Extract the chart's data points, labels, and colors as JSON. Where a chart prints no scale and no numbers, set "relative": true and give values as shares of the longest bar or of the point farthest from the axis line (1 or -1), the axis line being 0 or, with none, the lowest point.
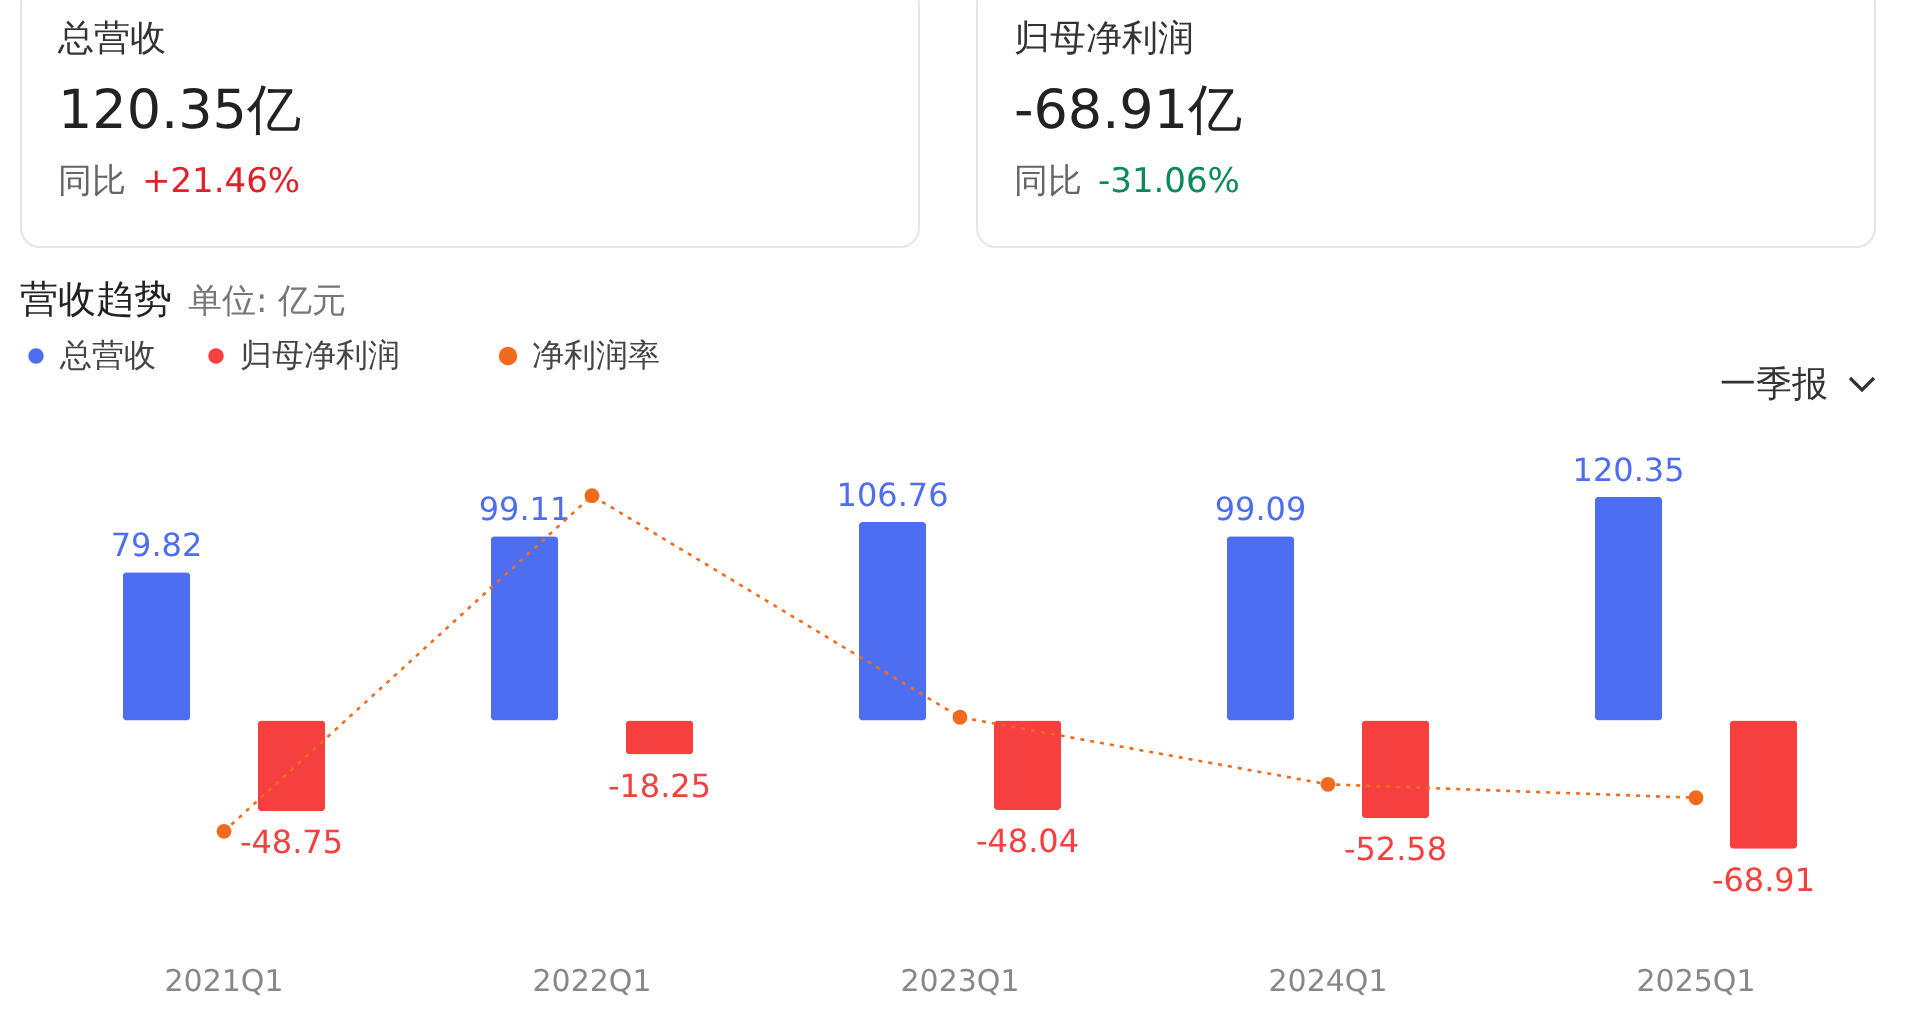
{
  "chart_data": [
    {
      "type": "other",
      "title": "总营收",
      "annotations": [
        "120.35亿",
        "同比",
        "+21.46%"
      ]
    },
    {
      "type": "other",
      "title": "归母净利润",
      "annotations": [
        "-68.91亿",
        "同比",
        "-31.06%"
      ]
    },
    {
      "type": "bar",
      "title": "营收趋势",
      "subtitle": "单位: 亿元",
      "categories": [
        "2021Q1",
        "2022Q1",
        "2023Q1",
        "2024Q1",
        "2025Q1"
      ],
      "series": [
        {
          "name": "总营收",
          "color": "#4e6ef2",
          "values": [
            79.82,
            99.11,
            106.76,
            99.09,
            120.35
          ]
        },
        {
          "name": "归母净利润",
          "color": "#f5403f",
          "values": [
            -48.75,
            -18.25,
            -48.04,
            -52.58,
            -68.91
          ]
        }
      ],
      "data_labels": true,
      "legend": "top left",
      "annotations": [
        "一季报"
      ]
    },
    {
      "type": "line",
      "categories": [
        null,
        null,
        null,
        null,
        null
      ],
      "relative": true,
      "series": [
        {
          "name": "净利润率",
          "color": "#f26b1d",
          "values": [
            0,
            1,
            0.34,
            0.14,
            0.1
          ]
        }
      ],
      "legend": "top left",
      "marker": "circle",
      "line_style": "dotted"
    }
  ]
}
